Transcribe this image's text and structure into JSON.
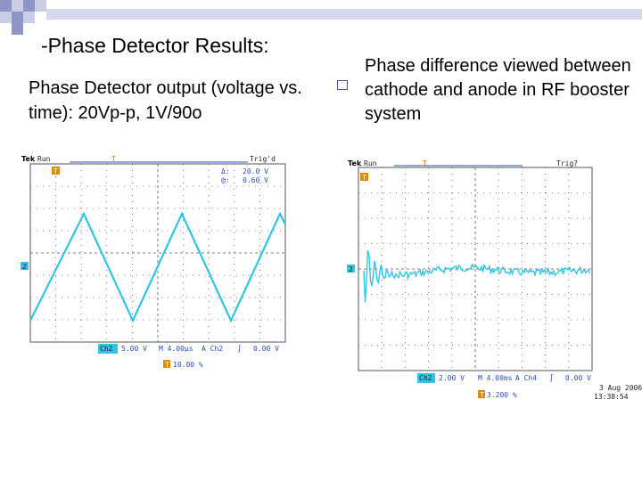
{
  "slide": {
    "title": "-Phase Detector Results:",
    "left_caption": "Phase Detector output (voltage vs. time): 20Vp-p, 1V/90o",
    "right_caption": "Phase difference viewed between cathode and anode in RF booster system"
  },
  "scope_left": {
    "header": {
      "brand": "Tek",
      "mode": "Run",
      "trig": "Trig'd"
    },
    "cursor_readout": {
      "delta_label": "Δ:",
      "delta_value": "20.0 V",
      "at_label": "@:",
      "at_value": "0.60 V"
    },
    "trig_marker": "T",
    "ch_marker": "2",
    "footer": {
      "channel": "Ch2",
      "volts": "5.00 V",
      "timebase": "M 4.00µs",
      "trigger_src": "A  Ch2",
      "trigger_slope": "∫",
      "trigger_level": "0.00 V",
      "trigger_pos": "10.00 %"
    },
    "colors": {
      "trace": "#2ec6e6",
      "background": "#f7f7f7"
    }
  },
  "scope_right": {
    "header": {
      "brand": "Tek",
      "mode": "Run",
      "trig": "Trig?"
    },
    "trig_marker": "T",
    "ch_marker": "2",
    "footer": {
      "channel": "Ch2",
      "volts": "2.00 V",
      "timebase": "M 4.00ms",
      "trigger_src": "A  Ch4",
      "trigger_slope": "∫",
      "trigger_level": "0.00 V",
      "trigger_pos": "3.200 %",
      "date": "3 Aug 2006",
      "time": "13:38:54"
    },
    "colors": {
      "trace": "#2ec6e6",
      "background": "#f7f7f7"
    }
  }
}
